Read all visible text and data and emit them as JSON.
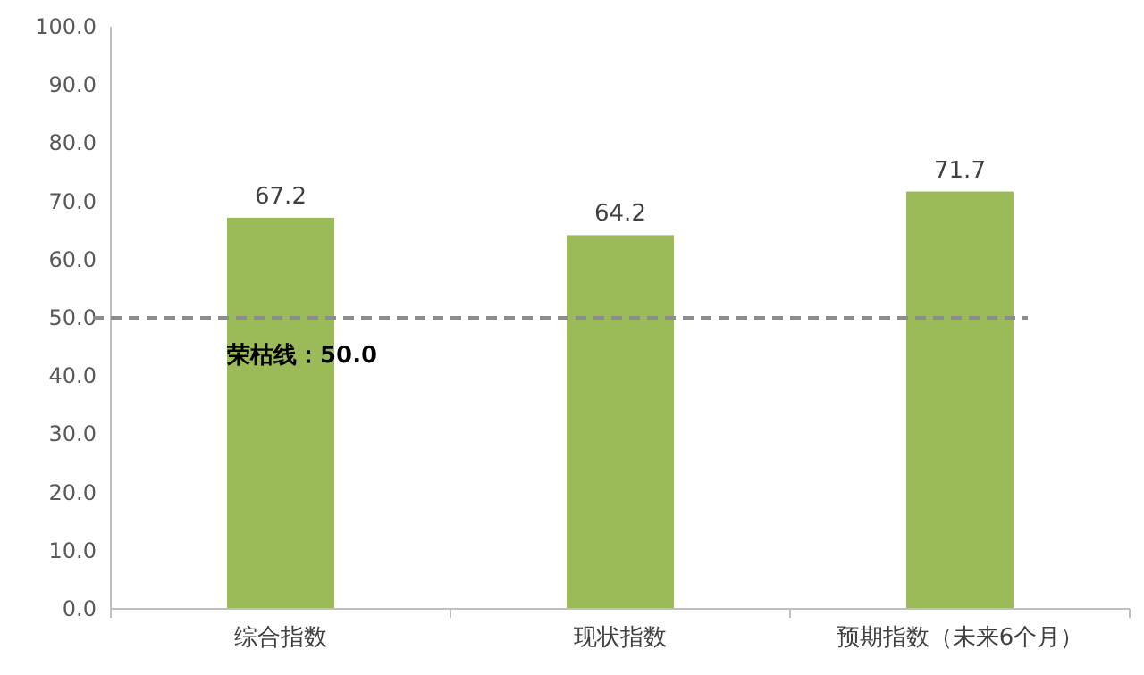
{
  "chart_data": {
    "type": "bar",
    "categories": [
      "综合指数",
      "现状指数",
      "预期指数（未来6个月）"
    ],
    "values": [
      67.2,
      64.2,
      71.7
    ],
    "color": "#9bbb59",
    "data_labels": true,
    "ylim": [
      0,
      100
    ],
    "yticks": [
      {
        "value": 0,
        "label": "0.0"
      },
      {
        "value": 10,
        "label": "10.0"
      },
      {
        "value": 20,
        "label": "20.0"
      },
      {
        "value": 30,
        "label": "30.0"
      },
      {
        "value": 40,
        "label": "40.0"
      },
      {
        "value": 50,
        "label": "50.0"
      },
      {
        "value": 60,
        "label": "60.0"
      },
      {
        "value": 70,
        "label": "70.0"
      },
      {
        "value": 80,
        "label": "80.0"
      },
      {
        "value": 90,
        "label": "90.0"
      },
      {
        "value": 100,
        "label": "100.0"
      }
    ],
    "ref_lines": [
      {
        "axis": "y",
        "value": 50,
        "label": "荣枯线：50.0",
        "color": "#8c8c8c",
        "line_style": "dashed"
      }
    ],
    "grid": false
  }
}
